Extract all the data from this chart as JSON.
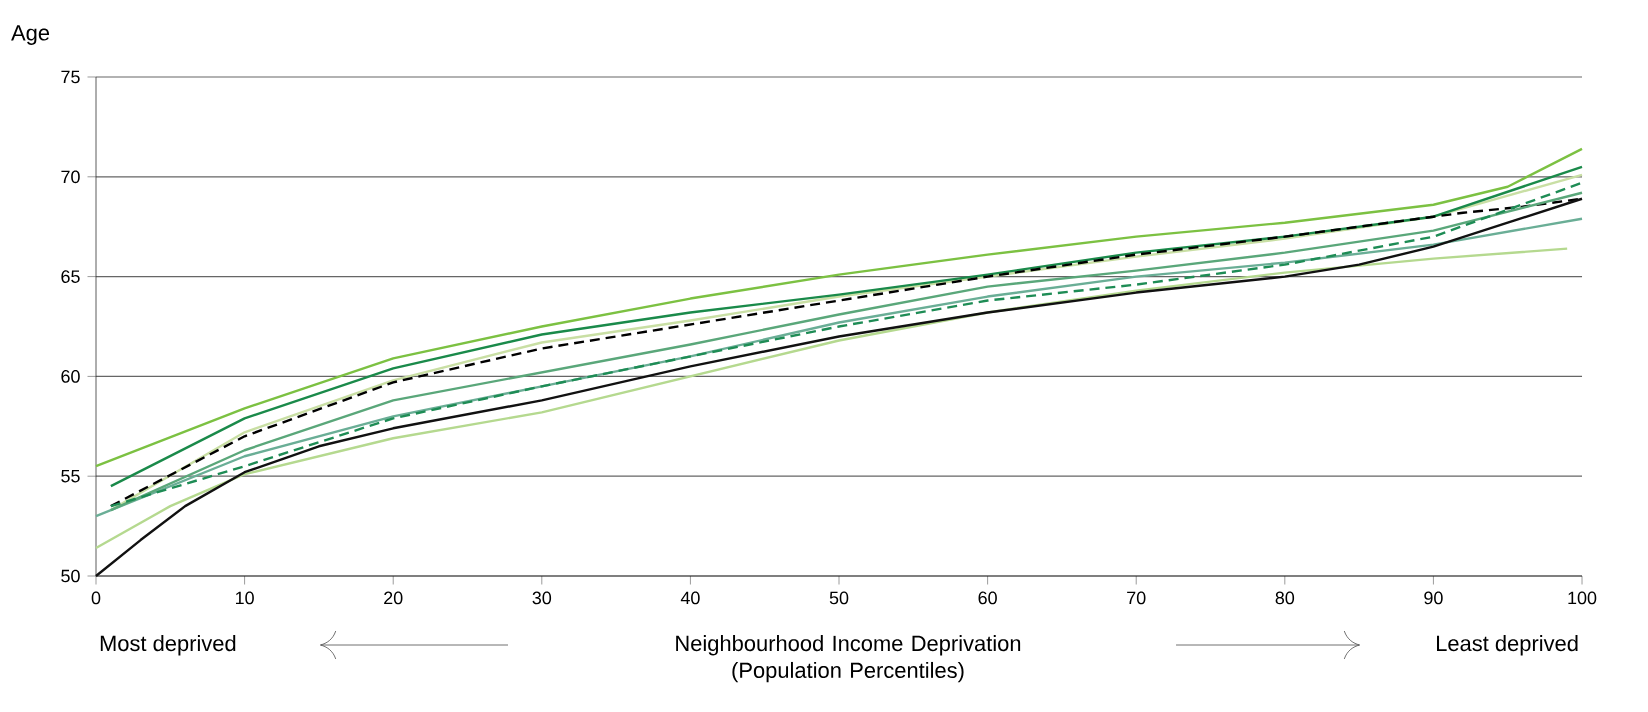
{
  "chart_data": {
    "type": "line",
    "ylabel": "Age",
    "xlabel": "Neighbourhood Income Deprivation (Population Percentiles)",
    "annotations": [
      "Most deprived",
      "Least deprived"
    ],
    "xlim": [
      0,
      100
    ],
    "ylim": [
      50,
      75
    ],
    "xticks": [
      0,
      10,
      20,
      30,
      40,
      50,
      60,
      70,
      80,
      90,
      100
    ],
    "yticks": [
      50,
      55,
      60,
      65,
      70,
      75
    ],
    "grid": "y",
    "series": [
      {
        "color": "#7cc142",
        "x": [
          0,
          10,
          20,
          30,
          40,
          50,
          60,
          70,
          80,
          90,
          95,
          100
        ],
        "values": [
          55.5,
          58.4,
          60.9,
          62.5,
          63.9,
          65.1,
          66.1,
          67.0,
          67.7,
          68.6,
          69.5,
          71.4
        ]
      },
      {
        "color": "#c9dfa4",
        "x": [
          1,
          10,
          20,
          30,
          40,
          50,
          60,
          70,
          80,
          90,
          100
        ],
        "values": [
          53.3,
          57.2,
          59.8,
          61.7,
          62.8,
          64.0,
          65.0,
          66.0,
          66.9,
          68.0,
          70.1
        ]
      },
      {
        "color": "#1a8a4a",
        "x": [
          1,
          10,
          20,
          30,
          40,
          50,
          60,
          70,
          80,
          90,
          100
        ],
        "values": [
          54.5,
          57.9,
          60.4,
          62.1,
          63.2,
          64.1,
          65.1,
          66.2,
          67.0,
          68.0,
          70.5
        ]
      },
      {
        "color": "#000000",
        "line_style": "dashed",
        "x": [
          1,
          10,
          20,
          30,
          40,
          50,
          60,
          70,
          80,
          90,
          92,
          96,
          100
        ],
        "values": [
          53.5,
          57.0,
          59.7,
          61.4,
          62.6,
          63.8,
          65.0,
          66.1,
          67.0,
          68.0,
          68.2,
          68.5,
          68.9
        ]
      },
      {
        "color": "#6aae96",
        "x": [
          0,
          10,
          20,
          30,
          40,
          50,
          60,
          70,
          80,
          90,
          100
        ],
        "values": [
          53.0,
          56.0,
          58.0,
          59.5,
          61.0,
          62.7,
          64.0,
          65.0,
          65.7,
          66.6,
          67.9
        ]
      },
      {
        "color": "#5aa77a",
        "x": [
          1,
          10,
          20,
          30,
          40,
          50,
          60,
          70,
          80,
          90,
          100
        ],
        "values": [
          53.3,
          56.3,
          58.8,
          60.2,
          61.6,
          63.1,
          64.5,
          65.3,
          66.2,
          67.3,
          69.2
        ]
      },
      {
        "color": "#1e8c55",
        "line_style": "dashed",
        "x": [
          1,
          10,
          20,
          30,
          40,
          50,
          60,
          70,
          80,
          90,
          100
        ],
        "values": [
          53.5,
          55.5,
          57.9,
          59.5,
          61.0,
          62.5,
          63.8,
          64.6,
          65.6,
          67.0,
          69.7
        ]
      },
      {
        "color": "#b5d98f",
        "x": [
          0,
          5,
          10,
          20,
          30,
          40,
          50,
          60,
          70,
          80,
          90,
          99
        ],
        "values": [
          51.4,
          53.5,
          55.1,
          56.9,
          58.2,
          60.0,
          61.8,
          63.2,
          64.3,
          65.2,
          65.9,
          66.4
        ]
      },
      {
        "color": "#111111",
        "x": [
          0,
          3,
          6,
          10,
          15,
          20,
          30,
          40,
          50,
          60,
          70,
          80,
          85,
          90,
          95,
          100
        ],
        "values": [
          50.0,
          51.8,
          53.5,
          55.2,
          56.5,
          57.4,
          58.8,
          60.5,
          62.0,
          63.2,
          64.2,
          65.0,
          65.6,
          66.5,
          67.7,
          68.9
        ]
      }
    ]
  }
}
